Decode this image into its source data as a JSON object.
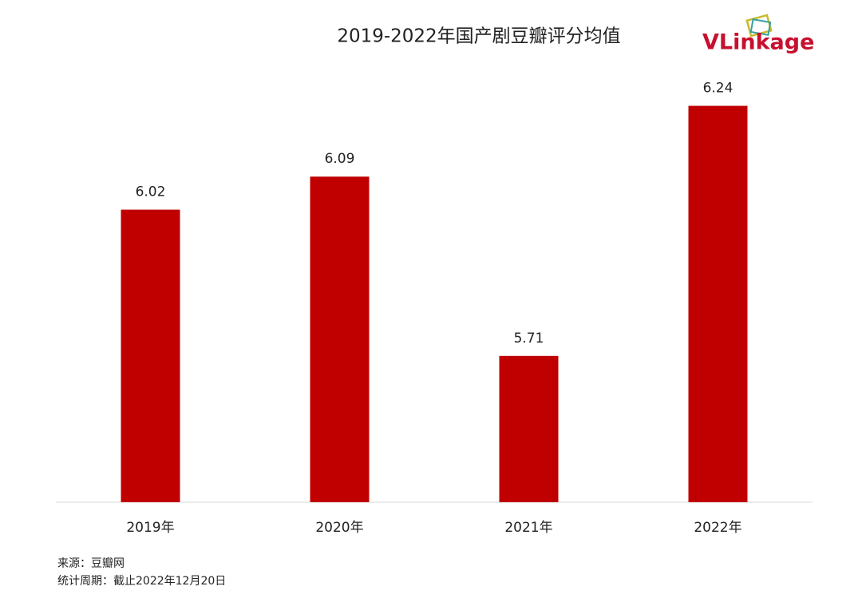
{
  "chart_data": {
    "type": "bar",
    "title": "2019-2022年国产剧豆瓣评分均值",
    "categories": [
      "2019年",
      "2020年",
      "2021年",
      "2022年"
    ],
    "values": [
      6.02,
      6.09,
      5.71,
      6.24
    ],
    "color": "#c00000",
    "ylim": [
      5.4,
      6.4
    ]
  },
  "logo": "VLinkage",
  "footnotes": [
    "来源：豆瓣网",
    "统计周期：截止2022年12月20日"
  ]
}
